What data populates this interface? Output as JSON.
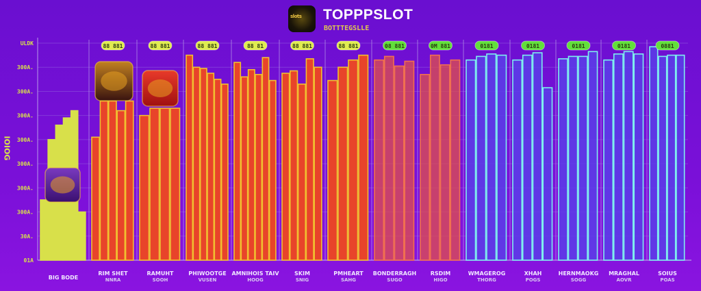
{
  "header": {
    "title": "TOPPPSLOT",
    "subtitle": "BOTTTEGSLLE",
    "logo_text": "slots"
  },
  "colors": {
    "background": "#7010d8",
    "yellow": "#d8e04a",
    "orange": "#e8442a",
    "red": "#e0504a",
    "blue": "#5a3ee8",
    "cyan": "#7ef0ee",
    "badge_yellow": "#e0ec50",
    "badge_green": "#62e03a"
  },
  "chart_data": {
    "type": "bar",
    "title": "TOPPPSLOT",
    "ylabel": "IOIOG",
    "xlabel": "",
    "ylim": [
      0,
      9
    ],
    "grid": true,
    "yticks": [
      "01A",
      "30A.",
      "300A.",
      "300A.",
      "300A.",
      "300A.",
      "300A.",
      "300A.",
      "300A.",
      "ULDK"
    ],
    "groups": [
      {
        "label": "BIG BODE",
        "sub": "",
        "badge": "",
        "color": "yellow",
        "values": [
          2.5,
          5.0,
          5.6,
          5.9,
          6.2,
          2.0
        ]
      },
      {
        "label": "RIM SHET",
        "sub": "NNRA",
        "badge": "88 881",
        "color": "orange",
        "values": [
          5.1,
          6.6,
          6.6,
          6.2,
          6.6
        ]
      },
      {
        "label": "RAMUHT",
        "sub": "SOOH",
        "badge": "88 881",
        "color": "orange",
        "values": [
          6.0,
          6.3,
          6.3,
          6.3
        ]
      },
      {
        "label": "PHIWOOTGE",
        "sub": "VUSEN",
        "badge": "88 881",
        "color": "orange",
        "values": [
          8.5,
          8.0,
          7.95,
          7.75,
          7.5,
          7.3
        ]
      },
      {
        "label": "AMNIHOIS TAIV",
        "sub": "HOOG",
        "badge": "88 81",
        "color": "orange",
        "values": [
          8.2,
          7.6,
          7.9,
          7.7,
          8.4,
          7.45
        ]
      },
      {
        "label": "SKIM",
        "sub": "SNIG",
        "badge": "88 881",
        "color": "orange",
        "values": [
          7.75,
          7.85,
          7.3,
          8.35,
          8.0
        ]
      },
      {
        "label": "PMHEART",
        "sub": "SAHG",
        "badge": "88 881",
        "color": "orange",
        "values": [
          7.45,
          8.0,
          8.3,
          8.5
        ]
      },
      {
        "label": "BONDERRAGH",
        "sub": "SUGO",
        "badge": "08 881",
        "color": "red",
        "values": [
          8.3,
          8.45,
          8.05,
          8.25
        ]
      },
      {
        "label": "RSDIM",
        "sub": "HIGO",
        "badge": "0M 881",
        "color": "red",
        "values": [
          7.7,
          8.5,
          8.1,
          8.3
        ]
      },
      {
        "label": "WMAGEROG",
        "sub": "THORG",
        "badge": "0181",
        "color": "blue",
        "values": [
          8.3,
          8.45,
          8.55,
          8.5
        ]
      },
      {
        "label": "XHAH",
        "sub": "POGS",
        "badge": "0181",
        "color": "blue",
        "values": [
          8.3,
          8.5,
          8.6,
          7.15
        ]
      },
      {
        "label": "HERNMAOKG",
        "sub": "SOGG",
        "badge": "0181",
        "color": "blue",
        "values": [
          8.35,
          8.45,
          8.45,
          8.65
        ]
      },
      {
        "label": "MRAGHAL",
        "sub": "AOVR",
        "badge": "0181",
        "color": "blue",
        "values": [
          8.3,
          8.55,
          8.65,
          8.55
        ]
      },
      {
        "label": "SOIUS",
        "sub": "POAS",
        "badge": "0881",
        "color": "blue",
        "values": [
          8.85,
          8.45,
          8.5,
          8.5
        ]
      }
    ]
  }
}
